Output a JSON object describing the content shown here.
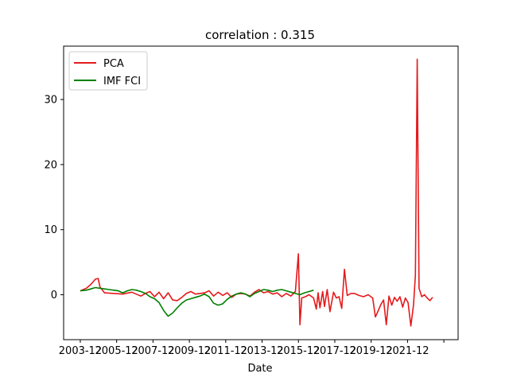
{
  "chart_data": {
    "type": "line",
    "title": "correlation : 0.315",
    "xlabel": "Date",
    "ylabel": "",
    "x_tick_labels": [
      "2003-12",
      "2005-12",
      "2007-12",
      "2009-12",
      "2011-12",
      "2013-12",
      "2015-12",
      "2017-12",
      "2019-12",
      "2021-12",
      ""
    ],
    "y_ticks": [
      0,
      10,
      20,
      30
    ],
    "x_range": [
      2003.0,
      2024.7
    ],
    "ylim": [
      -6.9,
      38.2
    ],
    "legend_position": "upper-left",
    "series": [
      {
        "name": "PCA",
        "color": "#e41a1c",
        "points": [
          [
            2003.917,
            0.6
          ],
          [
            2004.25,
            1.0
          ],
          [
            2004.5,
            1.6
          ],
          [
            2004.75,
            2.4
          ],
          [
            2004.9,
            2.5
          ],
          [
            2005.0,
            1.2
          ],
          [
            2005.25,
            0.3
          ],
          [
            2005.75,
            0.2
          ],
          [
            2006.25,
            0.1
          ],
          [
            2006.75,
            0.4
          ],
          [
            2007.25,
            -0.2
          ],
          [
            2007.5,
            0.2
          ],
          [
            2007.75,
            0.5
          ],
          [
            2008.0,
            -0.3
          ],
          [
            2008.25,
            0.4
          ],
          [
            2008.5,
            -0.6
          ],
          [
            2008.75,
            0.3
          ],
          [
            2009.0,
            -0.8
          ],
          [
            2009.25,
            -0.9
          ],
          [
            2009.5,
            -0.4
          ],
          [
            2009.75,
            0.2
          ],
          [
            2010.0,
            0.5
          ],
          [
            2010.25,
            0.1
          ],
          [
            2010.75,
            0.3
          ],
          [
            2011.0,
            0.6
          ],
          [
            2011.25,
            -0.2
          ],
          [
            2011.5,
            0.4
          ],
          [
            2011.75,
            -0.1
          ],
          [
            2012.0,
            0.3
          ],
          [
            2012.25,
            -0.4
          ],
          [
            2012.5,
            0.1
          ],
          [
            2012.75,
            0.2
          ],
          [
            2013.0,
            0.1
          ],
          [
            2013.25,
            -0.2
          ],
          [
            2013.5,
            0.4
          ],
          [
            2013.75,
            0.8
          ],
          [
            2014.0,
            0.3
          ],
          [
            2014.25,
            0.5
          ],
          [
            2014.5,
            0.1
          ],
          [
            2014.75,
            0.3
          ],
          [
            2015.0,
            -0.3
          ],
          [
            2015.25,
            0.2
          ],
          [
            2015.5,
            -0.2
          ],
          [
            2015.75,
            0.5
          ],
          [
            2015.917,
            6.3
          ],
          [
            2016.0,
            -4.6
          ],
          [
            2016.1,
            -0.5
          ],
          [
            2016.3,
            -0.3
          ],
          [
            2016.5,
            0.0
          ],
          [
            2016.75,
            -0.5
          ],
          [
            2016.9,
            -2.2
          ],
          [
            2017.0,
            0.3
          ],
          [
            2017.1,
            -2.0
          ],
          [
            2017.25,
            0.5
          ],
          [
            2017.35,
            -1.8
          ],
          [
            2017.5,
            0.8
          ],
          [
            2017.65,
            -2.6
          ],
          [
            2017.85,
            0.4
          ],
          [
            2018.0,
            -0.5
          ],
          [
            2018.15,
            -0.3
          ],
          [
            2018.3,
            -2.1
          ],
          [
            2018.45,
            3.9
          ],
          [
            2018.6,
            -0.1
          ],
          [
            2018.8,
            0.2
          ],
          [
            2019.0,
            0.2
          ],
          [
            2019.25,
            -0.1
          ],
          [
            2019.5,
            -0.3
          ],
          [
            2019.75,
            0.0
          ],
          [
            2020.0,
            -0.5
          ],
          [
            2020.15,
            -3.4
          ],
          [
            2020.3,
            -2.5
          ],
          [
            2020.45,
            -1.5
          ],
          [
            2020.6,
            -0.8
          ],
          [
            2020.75,
            -4.6
          ],
          [
            2020.9,
            -0.2
          ],
          [
            2021.05,
            -1.6
          ],
          [
            2021.2,
            -0.4
          ],
          [
            2021.35,
            -1.0
          ],
          [
            2021.5,
            -0.3
          ],
          [
            2021.65,
            -1.9
          ],
          [
            2021.8,
            -0.5
          ],
          [
            2021.95,
            -1.2
          ],
          [
            2022.1,
            -4.8
          ],
          [
            2022.25,
            -1.5
          ],
          [
            2022.35,
            3.0
          ],
          [
            2022.45,
            36.2
          ],
          [
            2022.55,
            1.0
          ],
          [
            2022.7,
            -0.3
          ],
          [
            2022.85,
            0.0
          ],
          [
            2023.0,
            -0.5
          ],
          [
            2023.15,
            -0.9
          ],
          [
            2023.3,
            -0.4
          ]
        ]
      },
      {
        "name": "IMF FCI",
        "color": "#008000",
        "points": [
          [
            2003.917,
            0.6
          ],
          [
            2004.25,
            0.7
          ],
          [
            2004.5,
            0.9
          ],
          [
            2004.75,
            1.1
          ],
          [
            2005.0,
            1.0
          ],
          [
            2005.25,
            0.9
          ],
          [
            2005.5,
            0.8
          ],
          [
            2005.75,
            0.7
          ],
          [
            2006.0,
            0.6
          ],
          [
            2006.25,
            0.3
          ],
          [
            2006.5,
            0.6
          ],
          [
            2006.75,
            0.8
          ],
          [
            2007.0,
            0.7
          ],
          [
            2007.25,
            0.5
          ],
          [
            2007.5,
            0.2
          ],
          [
            2007.75,
            -0.3
          ],
          [
            2008.0,
            -0.6
          ],
          [
            2008.25,
            -1.2
          ],
          [
            2008.5,
            -2.4
          ],
          [
            2008.75,
            -3.3
          ],
          [
            2009.0,
            -2.8
          ],
          [
            2009.25,
            -2.0
          ],
          [
            2009.5,
            -1.3
          ],
          [
            2009.75,
            -0.8
          ],
          [
            2010.0,
            -0.6
          ],
          [
            2010.25,
            -0.4
          ],
          [
            2010.5,
            -0.2
          ],
          [
            2010.75,
            0.1
          ],
          [
            2011.0,
            -0.3
          ],
          [
            2011.25,
            -1.3
          ],
          [
            2011.5,
            -1.6
          ],
          [
            2011.75,
            -1.4
          ],
          [
            2012.0,
            -0.7
          ],
          [
            2012.25,
            -0.2
          ],
          [
            2012.5,
            0.1
          ],
          [
            2012.75,
            0.3
          ],
          [
            2013.0,
            0.1
          ],
          [
            2013.25,
            -0.3
          ],
          [
            2013.5,
            0.2
          ],
          [
            2013.75,
            0.5
          ],
          [
            2014.0,
            0.8
          ],
          [
            2014.25,
            0.7
          ],
          [
            2014.5,
            0.5
          ],
          [
            2014.75,
            0.7
          ],
          [
            2015.0,
            0.8
          ],
          [
            2015.25,
            0.6
          ],
          [
            2015.5,
            0.4
          ],
          [
            2015.75,
            0.2
          ],
          [
            2016.0,
            0.0
          ],
          [
            2016.25,
            0.3
          ],
          [
            2016.5,
            0.5
          ],
          [
            2016.75,
            0.7
          ]
        ]
      }
    ]
  }
}
